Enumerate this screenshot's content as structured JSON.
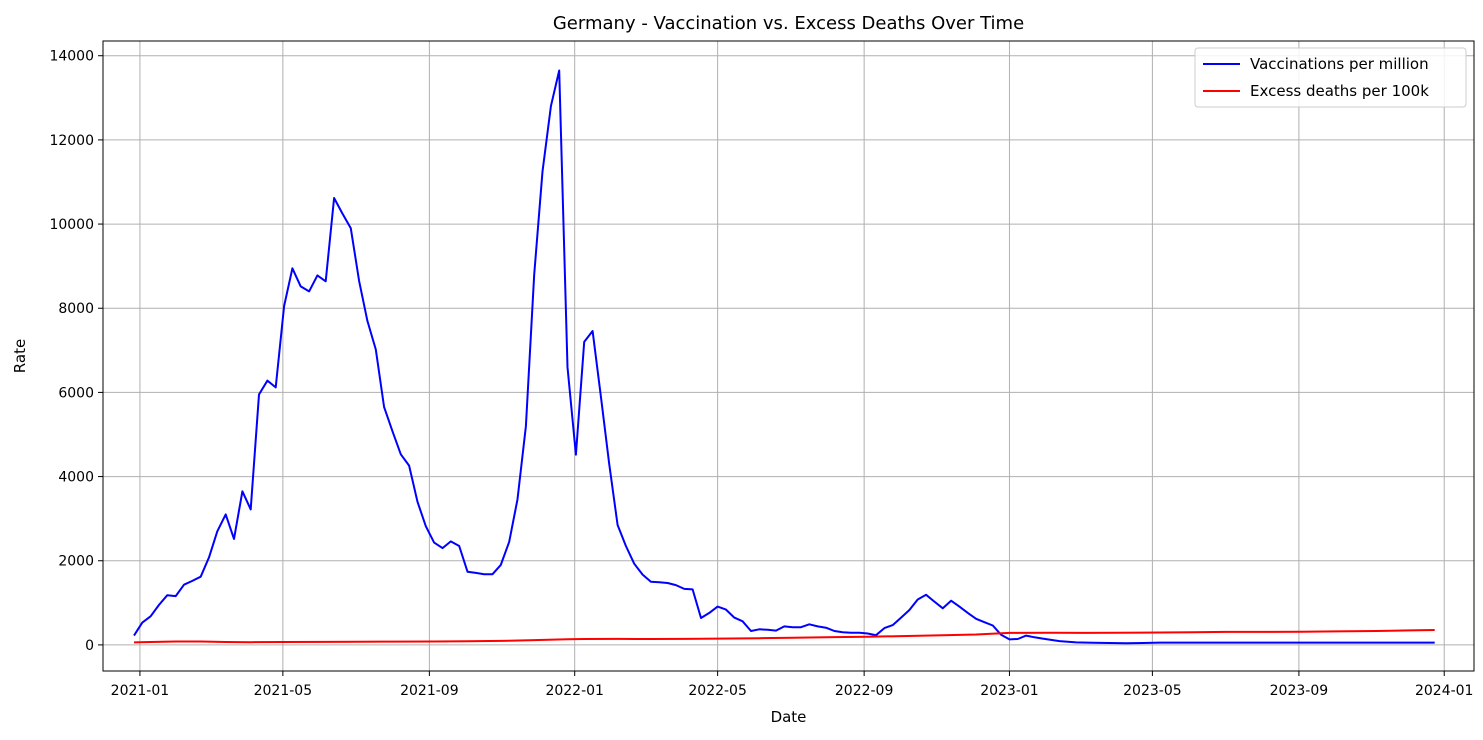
{
  "chart_data": {
    "type": "line",
    "title": "Germany - Vaccination vs. Excess Deaths Over Time",
    "xlabel": "Date",
    "ylabel": "Rate",
    "xlim": [
      "2020-12-01",
      "2024-01-26"
    ],
    "ylim": [
      -620,
      14350
    ],
    "grid": true,
    "legend_position": "top-right",
    "x_ticks": [
      "2021-01",
      "2021-05",
      "2021-09",
      "2022-01",
      "2022-05",
      "2022-09",
      "2023-01",
      "2023-05",
      "2023-09",
      "2024-01"
    ],
    "x_tick_dates": [
      "2021-01-01",
      "2021-05-01",
      "2021-09-01",
      "2022-01-01",
      "2022-05-01",
      "2022-09-01",
      "2023-01-01",
      "2023-05-01",
      "2023-09-01",
      "2024-01-01"
    ],
    "y_ticks": [
      0,
      2000,
      4000,
      6000,
      8000,
      10000,
      12000,
      14000
    ],
    "series": [
      {
        "name": "Vaccinations per million",
        "color": "#0000ff",
        "points": [
          [
            "2020-12-27",
            220
          ],
          [
            "2021-01-03",
            530
          ],
          [
            "2021-01-10",
            680
          ],
          [
            "2021-01-17",
            950
          ],
          [
            "2021-01-24",
            1180
          ],
          [
            "2021-01-31",
            1160
          ],
          [
            "2021-02-07",
            1430
          ],
          [
            "2021-02-14",
            1520
          ],
          [
            "2021-02-21",
            1620
          ],
          [
            "2021-02-28",
            2080
          ],
          [
            "2021-03-07",
            2700
          ],
          [
            "2021-03-14",
            3100
          ],
          [
            "2021-03-21",
            2520
          ],
          [
            "2021-03-28",
            3650
          ],
          [
            "2021-04-04",
            3220
          ],
          [
            "2021-04-11",
            5950
          ],
          [
            "2021-04-18",
            6280
          ],
          [
            "2021-04-25",
            6120
          ],
          [
            "2021-05-02",
            8050
          ],
          [
            "2021-05-09",
            8950
          ],
          [
            "2021-05-16",
            8520
          ],
          [
            "2021-05-23",
            8400
          ],
          [
            "2021-05-30",
            8780
          ],
          [
            "2021-06-06",
            8640
          ],
          [
            "2021-06-13",
            10620
          ],
          [
            "2021-06-20",
            10250
          ],
          [
            "2021-06-27",
            9900
          ],
          [
            "2021-07-04",
            8650
          ],
          [
            "2021-07-11",
            7700
          ],
          [
            "2021-07-18",
            7020
          ],
          [
            "2021-07-25",
            5650
          ],
          [
            "2021-08-01",
            5080
          ],
          [
            "2021-08-08",
            4530
          ],
          [
            "2021-08-15",
            4260
          ],
          [
            "2021-08-22",
            3400
          ],
          [
            "2021-08-29",
            2820
          ],
          [
            "2021-09-05",
            2430
          ],
          [
            "2021-09-12",
            2300
          ],
          [
            "2021-09-19",
            2460
          ],
          [
            "2021-09-26",
            2350
          ],
          [
            "2021-10-03",
            1740
          ],
          [
            "2021-10-10",
            1710
          ],
          [
            "2021-10-17",
            1680
          ],
          [
            "2021-10-24",
            1680
          ],
          [
            "2021-10-31",
            1900
          ],
          [
            "2021-11-07",
            2450
          ],
          [
            "2021-11-14",
            3460
          ],
          [
            "2021-11-21",
            5200
          ],
          [
            "2021-11-28",
            8800
          ],
          [
            "2021-12-05",
            11250
          ],
          [
            "2021-12-12",
            12800
          ],
          [
            "2021-12-19",
            13650
          ],
          [
            "2021-12-26",
            6600
          ],
          [
            "2022-01-02",
            4520
          ],
          [
            "2022-01-09",
            7200
          ],
          [
            "2022-01-16",
            7460
          ],
          [
            "2022-01-23",
            5900
          ],
          [
            "2022-01-30",
            4300
          ],
          [
            "2022-02-06",
            2850
          ],
          [
            "2022-02-13",
            2350
          ],
          [
            "2022-02-20",
            1930
          ],
          [
            "2022-02-27",
            1670
          ],
          [
            "2022-03-06",
            1500
          ],
          [
            "2022-03-13",
            1490
          ],
          [
            "2022-03-20",
            1470
          ],
          [
            "2022-03-27",
            1420
          ],
          [
            "2022-04-03",
            1330
          ],
          [
            "2022-04-10",
            1320
          ],
          [
            "2022-04-17",
            640
          ],
          [
            "2022-04-24",
            760
          ],
          [
            "2022-05-01",
            910
          ],
          [
            "2022-05-08",
            840
          ],
          [
            "2022-05-15",
            650
          ],
          [
            "2022-05-22",
            560
          ],
          [
            "2022-05-29",
            330
          ],
          [
            "2022-06-05",
            370
          ],
          [
            "2022-06-12",
            360
          ],
          [
            "2022-06-19",
            340
          ],
          [
            "2022-06-26",
            440
          ],
          [
            "2022-07-03",
            420
          ],
          [
            "2022-07-10",
            420
          ],
          [
            "2022-07-17",
            490
          ],
          [
            "2022-07-24",
            440
          ],
          [
            "2022-07-31",
            410
          ],
          [
            "2022-08-07",
            330
          ],
          [
            "2022-08-14",
            300
          ],
          [
            "2022-08-21",
            290
          ],
          [
            "2022-08-28",
            290
          ],
          [
            "2022-09-04",
            270
          ],
          [
            "2022-09-11",
            230
          ],
          [
            "2022-09-18",
            400
          ],
          [
            "2022-09-25",
            470
          ],
          [
            "2022-10-02",
            650
          ],
          [
            "2022-10-09",
            830
          ],
          [
            "2022-10-16",
            1080
          ],
          [
            "2022-10-23",
            1190
          ],
          [
            "2022-10-30",
            1030
          ],
          [
            "2022-11-06",
            870
          ],
          [
            "2022-11-13",
            1050
          ],
          [
            "2022-11-20",
            910
          ],
          [
            "2022-11-27",
            760
          ],
          [
            "2022-12-04",
            620
          ],
          [
            "2022-12-11",
            540
          ],
          [
            "2022-12-18",
            460
          ],
          [
            "2022-12-25",
            240
          ],
          [
            "2023-01-01",
            130
          ],
          [
            "2023-01-08",
            140
          ],
          [
            "2023-01-15",
            220
          ],
          [
            "2023-01-22",
            180
          ],
          [
            "2023-01-29",
            150
          ],
          [
            "2023-02-05",
            120
          ],
          [
            "2023-02-12",
            90
          ],
          [
            "2023-02-19",
            75
          ],
          [
            "2023-02-26",
            60
          ],
          [
            "2023-03-12",
            50
          ],
          [
            "2023-03-26",
            45
          ],
          [
            "2023-04-09",
            40
          ],
          [
            "2023-04-23",
            45
          ],
          [
            "2023-05-07",
            55
          ],
          [
            "2023-06-04",
            55
          ],
          [
            "2023-07-02",
            55
          ],
          [
            "2023-08-06",
            55
          ],
          [
            "2023-09-03",
            55
          ],
          [
            "2023-10-01",
            55
          ],
          [
            "2023-11-05",
            55
          ],
          [
            "2023-12-03",
            55
          ],
          [
            "2023-12-24",
            55
          ]
        ]
      },
      {
        "name": "Excess deaths per 100k",
        "color": "#ff0000",
        "points": [
          [
            "2020-12-27",
            60
          ],
          [
            "2021-01-10",
            70
          ],
          [
            "2021-01-31",
            80
          ],
          [
            "2021-02-21",
            80
          ],
          [
            "2021-03-14",
            70
          ],
          [
            "2021-04-04",
            65
          ],
          [
            "2021-05-02",
            68
          ],
          [
            "2021-06-06",
            72
          ],
          [
            "2021-07-04",
            75
          ],
          [
            "2021-08-01",
            78
          ],
          [
            "2021-09-05",
            82
          ],
          [
            "2021-10-03",
            88
          ],
          [
            "2021-10-31",
            95
          ],
          [
            "2021-11-28",
            115
          ],
          [
            "2021-12-26",
            135
          ],
          [
            "2022-01-09",
            140
          ],
          [
            "2022-02-06",
            142
          ],
          [
            "2022-03-06",
            140
          ],
          [
            "2022-04-03",
            142
          ],
          [
            "2022-05-01",
            150
          ],
          [
            "2022-06-05",
            160
          ],
          [
            "2022-07-03",
            168
          ],
          [
            "2022-08-07",
            185
          ],
          [
            "2022-09-04",
            195
          ],
          [
            "2022-10-02",
            210
          ],
          [
            "2022-11-06",
            228
          ],
          [
            "2022-12-04",
            248
          ],
          [
            "2023-01-01",
            285
          ],
          [
            "2023-02-05",
            290
          ],
          [
            "2023-03-05",
            285
          ],
          [
            "2023-04-02",
            288
          ],
          [
            "2023-05-07",
            295
          ],
          [
            "2023-06-04",
            302
          ],
          [
            "2023-07-02",
            308
          ],
          [
            "2023-08-06",
            310
          ],
          [
            "2023-09-03",
            315
          ],
          [
            "2023-10-01",
            320
          ],
          [
            "2023-11-05",
            330
          ],
          [
            "2023-12-03",
            345
          ],
          [
            "2023-12-24",
            355
          ]
        ]
      }
    ]
  }
}
